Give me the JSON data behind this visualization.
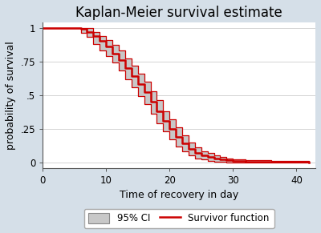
{
  "title": "Kaplan-Meier survival estimate",
  "xlabel": "Time of recovery in day",
  "ylabel": "probability of survival",
  "xlim": [
    0,
    43
  ],
  "ylim": [
    -0.04,
    1.04
  ],
  "xticks": [
    0,
    10,
    20,
    30,
    40
  ],
  "yticks": [
    0,
    0.25,
    0.5,
    0.75,
    1
  ],
  "ytick_labels": [
    "0",
    ".25",
    ".5",
    ".75",
    "1"
  ],
  "figure_bg_color": "#d5dfe8",
  "plot_bg_color": "#ffffff",
  "ci_color": "#c8c8c8",
  "ci_edge_color": "#cc0000",
  "survivor_color": "#cc0000",
  "survivor_lw": 1.8,
  "ci_lw": 0.9,
  "time": [
    0,
    6,
    6,
    7,
    7,
    8,
    8,
    9,
    9,
    10,
    10,
    11,
    11,
    12,
    12,
    13,
    13,
    14,
    14,
    15,
    15,
    16,
    16,
    17,
    17,
    18,
    18,
    19,
    19,
    20,
    20,
    21,
    21,
    22,
    22,
    23,
    23,
    24,
    24,
    25,
    25,
    26,
    26,
    27,
    27,
    28,
    28,
    29,
    29,
    30,
    30,
    32,
    32,
    36,
    36,
    42,
    42
  ],
  "survival": [
    1.0,
    1.0,
    0.99,
    0.99,
    0.97,
    0.97,
    0.94,
    0.94,
    0.9,
    0.9,
    0.86,
    0.86,
    0.81,
    0.81,
    0.76,
    0.76,
    0.7,
    0.7,
    0.64,
    0.64,
    0.58,
    0.58,
    0.52,
    0.52,
    0.45,
    0.45,
    0.38,
    0.38,
    0.31,
    0.31,
    0.25,
    0.25,
    0.19,
    0.19,
    0.14,
    0.14,
    0.1,
    0.1,
    0.07,
    0.07,
    0.05,
    0.05,
    0.04,
    0.04,
    0.03,
    0.03,
    0.02,
    0.02,
    0.015,
    0.015,
    0.01,
    0.01,
    0.006,
    0.006,
    0.003,
    0.003,
    0.001
  ],
  "ci_upper": [
    1.0,
    1.0,
    1.0,
    1.0,
    1.0,
    1.0,
    0.97,
    0.97,
    0.94,
    0.94,
    0.91,
    0.91,
    0.87,
    0.87,
    0.83,
    0.83,
    0.77,
    0.77,
    0.72,
    0.72,
    0.66,
    0.66,
    0.6,
    0.6,
    0.53,
    0.53,
    0.46,
    0.46,
    0.38,
    0.38,
    0.32,
    0.32,
    0.26,
    0.26,
    0.2,
    0.2,
    0.15,
    0.15,
    0.11,
    0.11,
    0.08,
    0.08,
    0.07,
    0.07,
    0.055,
    0.055,
    0.04,
    0.04,
    0.03,
    0.03,
    0.022,
    0.022,
    0.015,
    0.015,
    0.009,
    0.009,
    0.005
  ],
  "ci_lower": [
    1.0,
    1.0,
    0.96,
    0.96,
    0.93,
    0.93,
    0.88,
    0.88,
    0.83,
    0.83,
    0.79,
    0.79,
    0.74,
    0.74,
    0.68,
    0.68,
    0.62,
    0.62,
    0.56,
    0.56,
    0.49,
    0.49,
    0.43,
    0.43,
    0.36,
    0.36,
    0.29,
    0.29,
    0.23,
    0.23,
    0.17,
    0.17,
    0.12,
    0.12,
    0.08,
    0.08,
    0.05,
    0.05,
    0.03,
    0.03,
    0.02,
    0.02,
    0.013,
    0.013,
    0.007,
    0.007,
    0.003,
    0.003,
    0.001,
    0.001,
    0.0,
    0.0,
    0.0,
    0.0,
    0.0,
    0.0,
    0.0
  ],
  "legend_ci_color": "#c8c8c8",
  "legend_ci_edge": "#888888",
  "legend_survivor_color": "#cc0000",
  "title_fontsize": 12,
  "label_fontsize": 9,
  "tick_fontsize": 8.5
}
